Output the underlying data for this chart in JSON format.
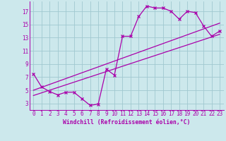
{
  "bg_color": "#cce8ec",
  "grid_color": "#a0c8d0",
  "line_color": "#aa00aa",
  "xlabel": "Windchill (Refroidissement éolien,°C)",
  "xlim": [
    -0.5,
    23.5
  ],
  "ylim": [
    2,
    18.5
  ],
  "xticks": [
    0,
    1,
    2,
    3,
    4,
    5,
    6,
    7,
    8,
    9,
    10,
    11,
    12,
    13,
    14,
    15,
    16,
    17,
    18,
    19,
    20,
    21,
    22,
    23
  ],
  "yticks": [
    3,
    5,
    7,
    9,
    11,
    13,
    15,
    17
  ],
  "data_line": {
    "x": [
      0,
      1,
      2,
      3,
      4,
      5,
      6,
      7,
      8,
      9,
      10,
      11,
      12,
      13,
      14,
      15,
      16,
      17,
      18,
      19,
      20,
      21,
      22,
      23
    ],
    "y": [
      7.5,
      5.5,
      4.8,
      4.3,
      4.7,
      4.7,
      3.7,
      2.7,
      2.9,
      8.2,
      7.3,
      13.2,
      13.2,
      16.2,
      17.8,
      17.5,
      17.5,
      17.0,
      15.8,
      17.0,
      16.8,
      14.8,
      13.2,
      14.0
    ]
  },
  "reg_line1": {
    "x": [
      0,
      23
    ],
    "y": [
      5.0,
      15.2
    ]
  },
  "reg_line2": {
    "x": [
      0,
      23
    ],
    "y": [
      4.2,
      13.5
    ]
  },
  "tick_fontsize": 5.5,
  "xlabel_fontsize": 5.8,
  "marker": "x",
  "markersize": 3.5,
  "linewidth": 0.9
}
